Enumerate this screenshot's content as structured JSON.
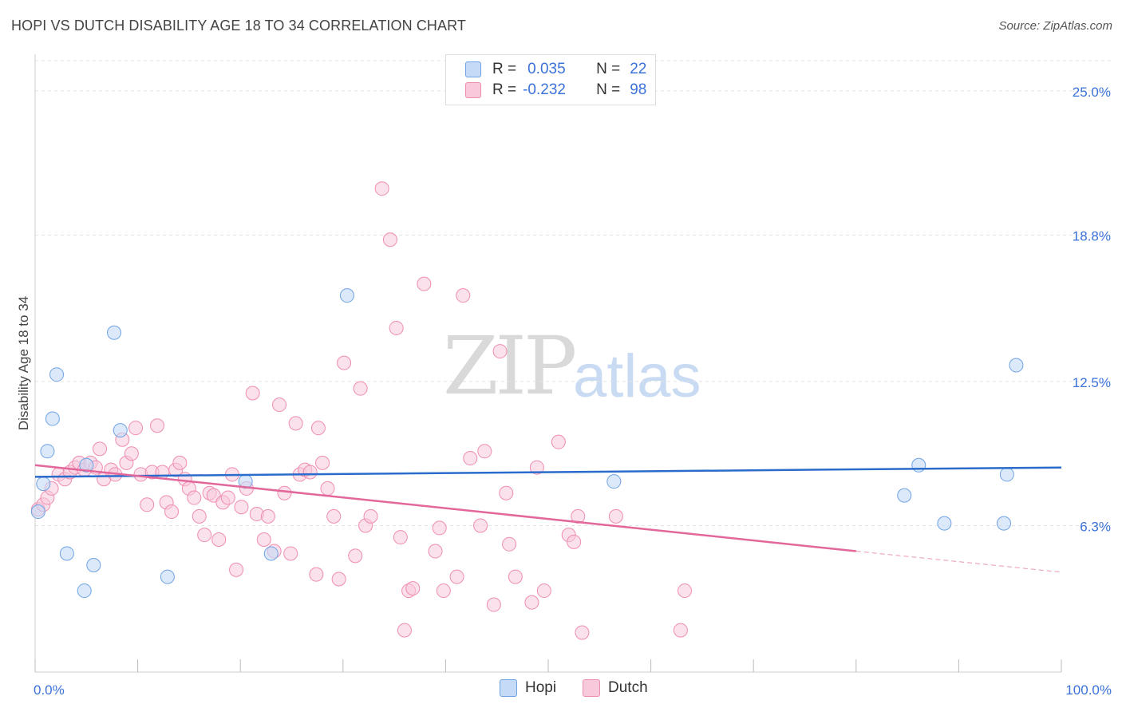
{
  "title": "HOPI VS DUTCH DISABILITY AGE 18 TO 34 CORRELATION CHART",
  "source": "Source: ZipAtlas.com",
  "watermark": {
    "zip": "ZIP",
    "atlas": "atlas"
  },
  "colors": {
    "hopi": "#6fa3e3",
    "hopi_fill": "#c5daf6",
    "dutch": "#ef8db0",
    "dutch_fill": "#f8c9da",
    "hopi_line": "#2a6ccc",
    "dutch_line": "#e2679a",
    "axis_label": "#3b72d9"
  },
  "legend": {
    "rows": [
      {
        "r_label": "R =",
        "r_value": "0.035",
        "n_label": "N =",
        "n_value": "22"
      },
      {
        "r_label": "R =",
        "r_value": "-0.232",
        "n_label": "N =",
        "n_value": "98"
      }
    ]
  },
  "bottom_legend": {
    "hopi": "Hopi",
    "dutch": "Dutch"
  },
  "chart_data": {
    "type": "scatter",
    "xlabel": "",
    "ylabel": "Disability Age 18 to 34",
    "xlim": [
      0,
      100
    ],
    "ylim": [
      0,
      26.3
    ],
    "x_tick_labels": [
      "0.0%",
      "100.0%"
    ],
    "y_ticks": [
      6.3,
      12.5,
      18.8,
      25.0
    ],
    "y_tick_labels": [
      "6.3%",
      "12.5%",
      "18.8%",
      "25.0%"
    ],
    "grid": true,
    "series": [
      {
        "name": "Hopi",
        "r": 0.035,
        "n": 22,
        "trend": {
          "x": [
            0,
            100
          ],
          "y": [
            8.4,
            8.8
          ]
        },
        "points": [
          {
            "x": 0.3,
            "y": 6.9
          },
          {
            "x": 0.8,
            "y": 8.1
          },
          {
            "x": 1.2,
            "y": 9.5
          },
          {
            "x": 1.7,
            "y": 10.9
          },
          {
            "x": 2.1,
            "y": 12.8
          },
          {
            "x": 3.1,
            "y": 5.1
          },
          {
            "x": 5.0,
            "y": 8.9
          },
          {
            "x": 4.8,
            "y": 3.5
          },
          {
            "x": 5.7,
            "y": 4.6
          },
          {
            "x": 7.7,
            "y": 14.6
          },
          {
            "x": 8.3,
            "y": 10.4
          },
          {
            "x": 12.9,
            "y": 4.1
          },
          {
            "x": 20.5,
            "y": 8.2
          },
          {
            "x": 23.0,
            "y": 5.1
          },
          {
            "x": 30.4,
            "y": 16.2
          },
          {
            "x": 56.4,
            "y": 8.2
          },
          {
            "x": 84.7,
            "y": 7.6
          },
          {
            "x": 86.1,
            "y": 8.9
          },
          {
            "x": 88.6,
            "y": 6.4
          },
          {
            "x": 94.4,
            "y": 6.4
          },
          {
            "x": 94.7,
            "y": 8.5
          },
          {
            "x": 95.6,
            "y": 13.2
          }
        ]
      },
      {
        "name": "Dutch",
        "r": -0.232,
        "n": 98,
        "trend": {
          "x": [
            0,
            80
          ],
          "y": [
            8.9,
            5.2
          ]
        },
        "trend_dashed": {
          "x": [
            80,
            100
          ],
          "y": [
            5.2,
            4.3
          ]
        },
        "points": [
          {
            "x": 0.3,
            "y": 7.0
          },
          {
            "x": 0.8,
            "y": 7.2
          },
          {
            "x": 1.2,
            "y": 7.5
          },
          {
            "x": 1.6,
            "y": 7.9
          },
          {
            "x": 2.3,
            "y": 8.5
          },
          {
            "x": 2.9,
            "y": 8.3
          },
          {
            "x": 3.4,
            "y": 8.6
          },
          {
            "x": 3.9,
            "y": 8.8
          },
          {
            "x": 4.3,
            "y": 9.0
          },
          {
            "x": 4.8,
            "y": 8.7
          },
          {
            "x": 5.4,
            "y": 9.0
          },
          {
            "x": 5.9,
            "y": 8.8
          },
          {
            "x": 6.3,
            "y": 9.6
          },
          {
            "x": 6.7,
            "y": 8.3
          },
          {
            "x": 7.4,
            "y": 8.7
          },
          {
            "x": 7.8,
            "y": 8.5
          },
          {
            "x": 8.5,
            "y": 10.0
          },
          {
            "x": 8.9,
            "y": 9.0
          },
          {
            "x": 9.4,
            "y": 9.4
          },
          {
            "x": 9.8,
            "y": 10.5
          },
          {
            "x": 10.3,
            "y": 8.5
          },
          {
            "x": 10.9,
            "y": 7.2
          },
          {
            "x": 11.4,
            "y": 8.6
          },
          {
            "x": 11.9,
            "y": 10.6
          },
          {
            "x": 12.4,
            "y": 8.6
          },
          {
            "x": 12.8,
            "y": 7.3
          },
          {
            "x": 13.3,
            "y": 6.9
          },
          {
            "x": 13.7,
            "y": 8.7
          },
          {
            "x": 14.1,
            "y": 9.0
          },
          {
            "x": 14.6,
            "y": 8.3
          },
          {
            "x": 15.0,
            "y": 7.9
          },
          {
            "x": 15.5,
            "y": 7.5
          },
          {
            "x": 16.0,
            "y": 6.7
          },
          {
            "x": 16.5,
            "y": 5.9
          },
          {
            "x": 17.0,
            "y": 7.7
          },
          {
            "x": 17.4,
            "y": 7.6
          },
          {
            "x": 17.9,
            "y": 5.7
          },
          {
            "x": 18.3,
            "y": 7.3
          },
          {
            "x": 18.8,
            "y": 7.5
          },
          {
            "x": 19.2,
            "y": 8.5
          },
          {
            "x": 19.6,
            "y": 4.4
          },
          {
            "x": 20.1,
            "y": 7.1
          },
          {
            "x": 20.6,
            "y": 7.9
          },
          {
            "x": 21.2,
            "y": 12.0
          },
          {
            "x": 21.6,
            "y": 6.8
          },
          {
            "x": 22.3,
            "y": 5.7
          },
          {
            "x": 22.7,
            "y": 6.7
          },
          {
            "x": 23.3,
            "y": 5.2
          },
          {
            "x": 23.8,
            "y": 11.5
          },
          {
            "x": 24.3,
            "y": 7.7
          },
          {
            "x": 24.9,
            "y": 5.1
          },
          {
            "x": 25.4,
            "y": 10.7
          },
          {
            "x": 25.8,
            "y": 8.5
          },
          {
            "x": 26.3,
            "y": 8.7
          },
          {
            "x": 26.8,
            "y": 8.6
          },
          {
            "x": 27.4,
            "y": 4.2
          },
          {
            "x": 27.6,
            "y": 10.5
          },
          {
            "x": 28.0,
            "y": 9.0
          },
          {
            "x": 28.5,
            "y": 7.9
          },
          {
            "x": 29.1,
            "y": 6.7
          },
          {
            "x": 29.6,
            "y": 4.0
          },
          {
            "x": 30.1,
            "y": 13.3
          },
          {
            "x": 31.2,
            "y": 5.0
          },
          {
            "x": 31.7,
            "y": 12.2
          },
          {
            "x": 32.2,
            "y": 6.3
          },
          {
            "x": 32.7,
            "y": 6.7
          },
          {
            "x": 33.8,
            "y": 20.8
          },
          {
            "x": 34.6,
            "y": 18.6
          },
          {
            "x": 35.2,
            "y": 14.8
          },
          {
            "x": 35.6,
            "y": 5.8
          },
          {
            "x": 36.0,
            "y": 1.8
          },
          {
            "x": 36.4,
            "y": 3.5
          },
          {
            "x": 36.8,
            "y": 3.6
          },
          {
            "x": 37.9,
            "y": 16.7
          },
          {
            "x": 39.0,
            "y": 5.2
          },
          {
            "x": 39.4,
            "y": 6.2
          },
          {
            "x": 39.8,
            "y": 3.5
          },
          {
            "x": 41.1,
            "y": 4.1
          },
          {
            "x": 41.7,
            "y": 16.2
          },
          {
            "x": 42.4,
            "y": 9.2
          },
          {
            "x": 43.4,
            "y": 6.3
          },
          {
            "x": 43.8,
            "y": 9.5
          },
          {
            "x": 44.7,
            "y": 2.9
          },
          {
            "x": 45.3,
            "y": 13.8
          },
          {
            "x": 45.9,
            "y": 7.7
          },
          {
            "x": 46.2,
            "y": 5.5
          },
          {
            "x": 46.8,
            "y": 4.1
          },
          {
            "x": 48.4,
            "y": 3.0
          },
          {
            "x": 48.9,
            "y": 8.8
          },
          {
            "x": 49.6,
            "y": 3.5
          },
          {
            "x": 51.0,
            "y": 9.9
          },
          {
            "x": 52.0,
            "y": 5.9
          },
          {
            "x": 52.5,
            "y": 5.6
          },
          {
            "x": 52.9,
            "y": 6.7
          },
          {
            "x": 53.3,
            "y": 1.7
          },
          {
            "x": 56.6,
            "y": 6.7
          },
          {
            "x": 62.9,
            "y": 1.8
          },
          {
            "x": 63.3,
            "y": 3.5
          }
        ]
      }
    ]
  }
}
